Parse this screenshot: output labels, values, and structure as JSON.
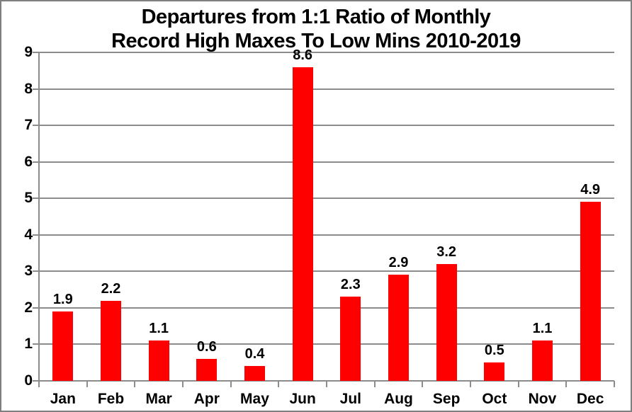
{
  "title": {
    "line1": "Departures from 1:1 Ratio of Monthly",
    "line2": "Record High Maxes To Low Mins 2010-2019"
  },
  "colors": {
    "bar": "#ff0000",
    "gridline": "#8c8c8c",
    "axis": "#8c8c8c",
    "frame_border": "#7f7f7f",
    "text": "#000000",
    "background": "#ffffff"
  },
  "chart_data": {
    "type": "bar",
    "title": "Departures from 1:1 Ratio of Monthly Record High Maxes To Low Mins 2010-2019",
    "categories": [
      "Jan",
      "Feb",
      "Mar",
      "Apr",
      "May",
      "Jun",
      "Jul",
      "Aug",
      "Sep",
      "Oct",
      "Nov",
      "Dec"
    ],
    "values": [
      1.9,
      2.2,
      1.1,
      0.6,
      0.4,
      8.6,
      2.3,
      2.9,
      3.2,
      0.5,
      1.1,
      4.9
    ],
    "data_labels": [
      "1.9",
      "2.2",
      "1.1",
      "0.6",
      "0.4",
      "8.6",
      "2.3",
      "2.9",
      "3.2",
      "0.5",
      "1.1",
      "4.9"
    ],
    "xlabel": "",
    "ylabel": "",
    "ylim": [
      0,
      9
    ],
    "yticks": [
      0,
      1,
      2,
      3,
      4,
      5,
      6,
      7,
      8,
      9
    ],
    "grid": "horizontal",
    "legend": "none",
    "bar_color": "#ff0000"
  }
}
